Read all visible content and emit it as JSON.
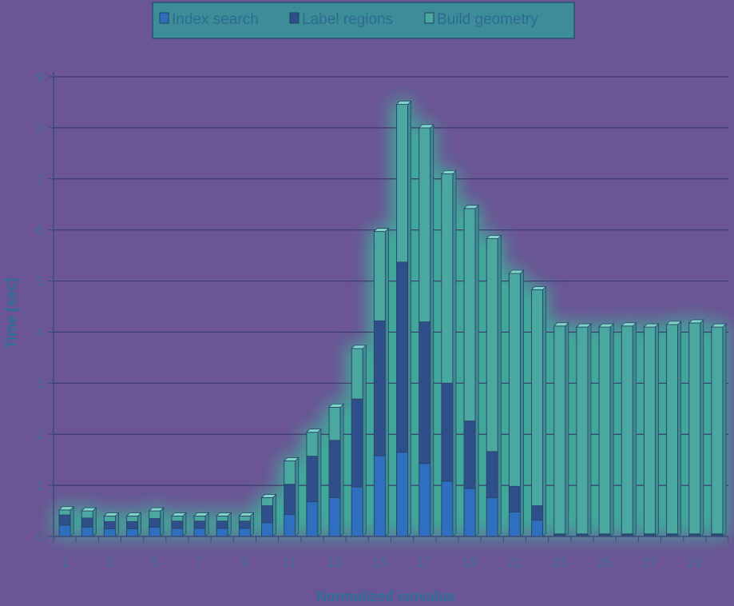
{
  "chart_data": {
    "type": "bar",
    "stacked": true,
    "xlabel": "Normalized isovalue",
    "ylabel": "Time [sec]",
    "ylim": [
      0,
      9
    ],
    "yticks": [
      0,
      1,
      2,
      3,
      4,
      5,
      6,
      7,
      8,
      9
    ],
    "categories": [
      1,
      2,
      3,
      4,
      5,
      6,
      7,
      8,
      9,
      10,
      11,
      12,
      13,
      14,
      15,
      16,
      17,
      18,
      19,
      20,
      21,
      22,
      23,
      24,
      25,
      26,
      27,
      28,
      29,
      30
    ],
    "xtick_labels": [
      "1",
      "3",
      "5",
      "7",
      "9",
      "11",
      "13",
      "15",
      "17",
      "19",
      "21",
      "23",
      "25",
      "27",
      "29"
    ],
    "grid": true,
    "legend_position": "top",
    "series": [
      {
        "name": "Index search",
        "color": "#2f6fbf",
        "values": [
          0.22,
          0.18,
          0.15,
          0.15,
          0.18,
          0.16,
          0.16,
          0.16,
          0.16,
          0.27,
          0.43,
          0.68,
          0.76,
          0.97,
          1.58,
          1.65,
          1.43,
          1.08,
          0.94,
          0.76,
          0.48,
          0.32,
          0.02,
          0.02,
          0.02,
          0.02,
          0.02,
          0.02,
          0.02,
          0.02
        ]
      },
      {
        "name": "Label regions",
        "color": "#2f4f8a",
        "values": [
          0.2,
          0.18,
          0.14,
          0.14,
          0.17,
          0.14,
          0.14,
          0.14,
          0.14,
          0.33,
          0.59,
          0.89,
          1.12,
          1.72,
          2.64,
          3.72,
          2.77,
          1.92,
          1.32,
          0.9,
          0.5,
          0.28,
          0.03,
          0.03,
          0.03,
          0.03,
          0.03,
          0.03,
          0.03,
          0.03
        ]
      },
      {
        "name": "Build geometry",
        "color": "#4aa8a0",
        "values": [
          0.1,
          0.14,
          0.11,
          0.11,
          0.15,
          0.1,
          0.1,
          0.1,
          0.1,
          0.16,
          0.46,
          0.47,
          0.65,
          0.99,
          1.75,
          3.09,
          3.8,
          4.1,
          4.16,
          4.17,
          4.17,
          4.23,
          4.07,
          4.05,
          4.05,
          4.07,
          4.05,
          4.1,
          4.13,
          4.05
        ]
      }
    ]
  }
}
